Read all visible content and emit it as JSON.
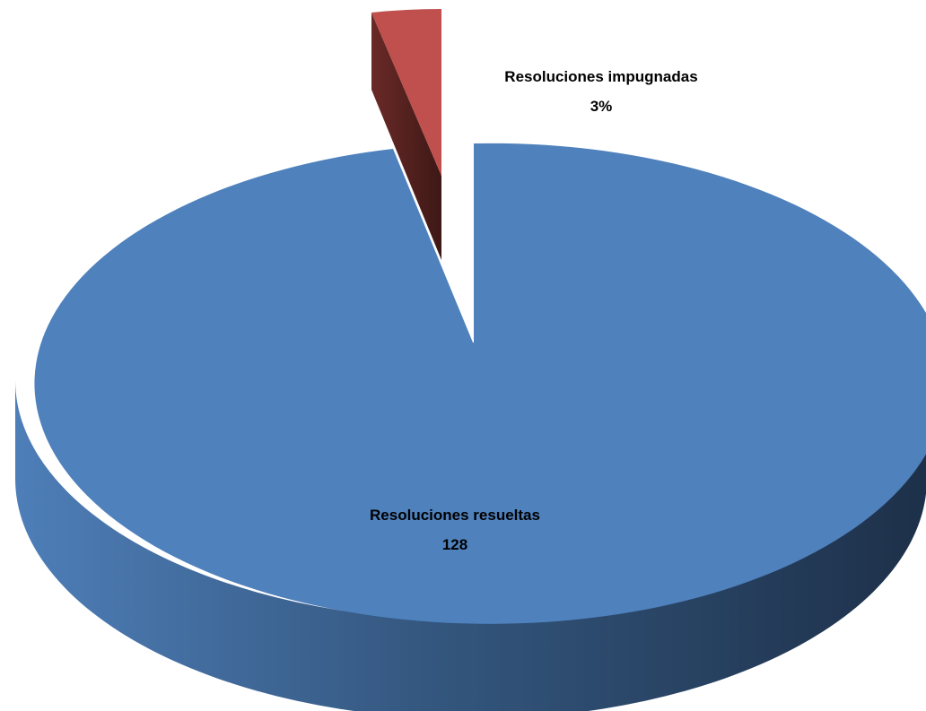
{
  "chart_data": {
    "type": "pie",
    "style": "3d-exploded",
    "slices": [
      {
        "name": "Resoluciones resueltas",
        "value_label": "128",
        "percent": 97,
        "color": "#4F81BD",
        "exploded": false
      },
      {
        "name": "Resoluciones impugnadas",
        "value_label": "3%",
        "percent": 3,
        "color": "#C0504D",
        "exploded": true
      }
    ]
  }
}
